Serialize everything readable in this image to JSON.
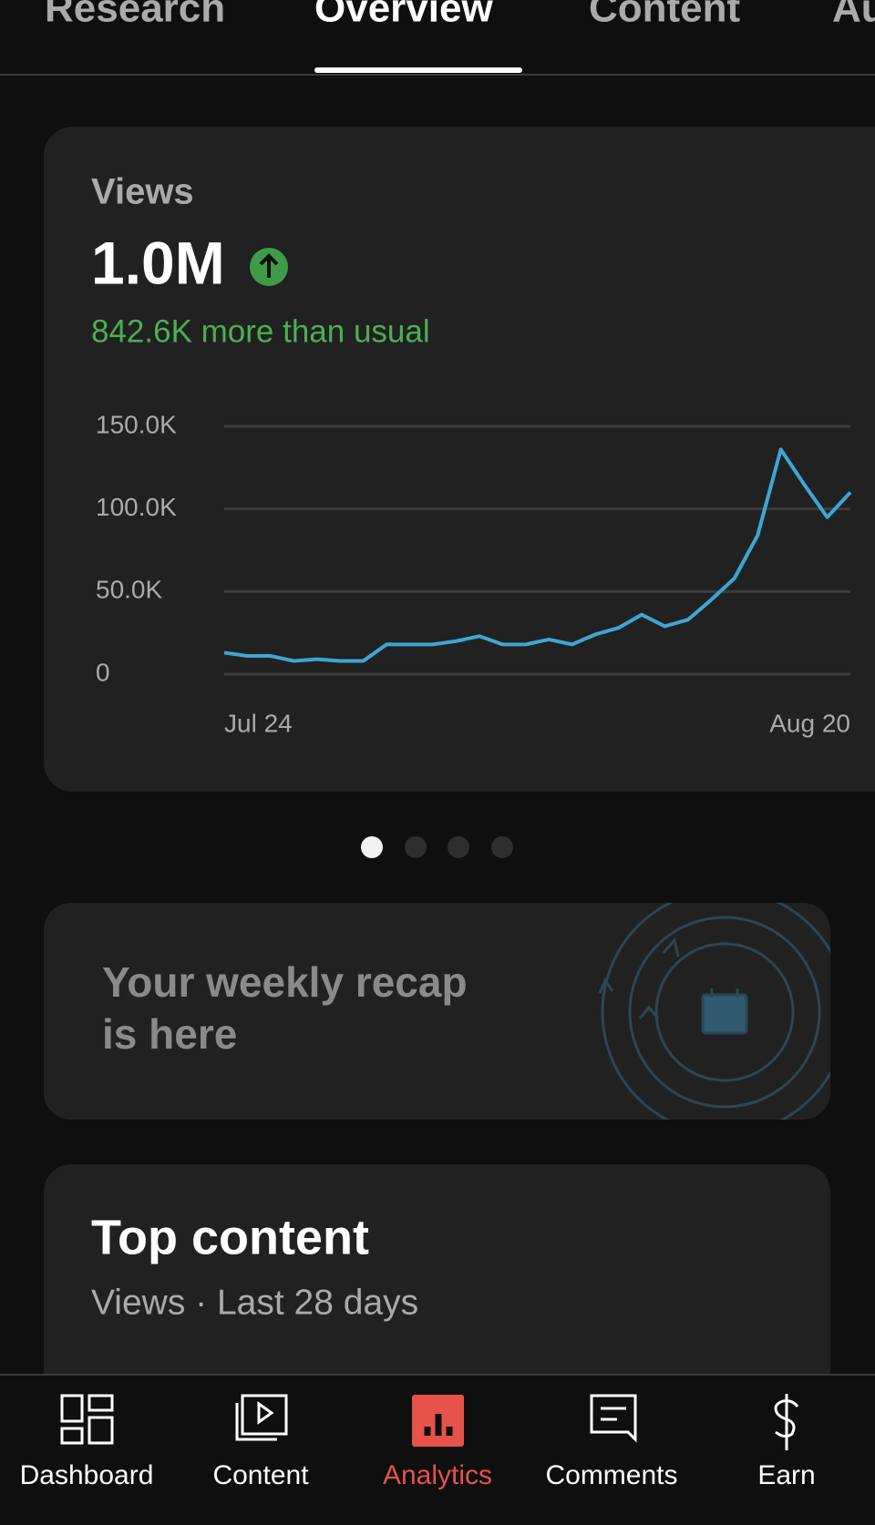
{
  "tabs": [
    "Research",
    "Overview",
    "Content",
    "Audience"
  ],
  "views_card": {
    "label": "Views",
    "total": "1.0M",
    "delta": "842.6K more than usual"
  },
  "chart_data": {
    "type": "line",
    "categories": [
      "Jul 24",
      null,
      null,
      null,
      null,
      null,
      null,
      null,
      null,
      null,
      null,
      null,
      null,
      null,
      null,
      null,
      null,
      null,
      null,
      null,
      null,
      null,
      null,
      null,
      null,
      null,
      null,
      "Aug 20"
    ],
    "series": [
      {
        "color": "#3ea6d3",
        "values": [
          13000,
          11000,
          11000,
          8000,
          9000,
          8000,
          8000,
          18000,
          18000,
          18000,
          20000,
          23000,
          18000,
          18000,
          21000,
          18000,
          24000,
          28000,
          36000,
          29000,
          33000,
          45000,
          58000,
          84000,
          136000,
          115000,
          95000,
          110000
        ]
      }
    ],
    "ylim": [
      0,
      150000
    ],
    "yticks": [
      0,
      {
        "value": 50000,
        "label": "50.0K"
      },
      {
        "value": 100000,
        "label": "100.0K"
      },
      {
        "value": 150000,
        "label": "150.0K"
      }
    ],
    "grid": true
  },
  "recap": {
    "lines": [
      "Your weekly recap",
      "is here"
    ]
  },
  "top_content": {
    "title": "Top content",
    "subtitle": "Views · Last 28 days"
  },
  "nav": [
    "Dashboard",
    "Content",
    "Analytics",
    "Comments",
    "Earn"
  ]
}
